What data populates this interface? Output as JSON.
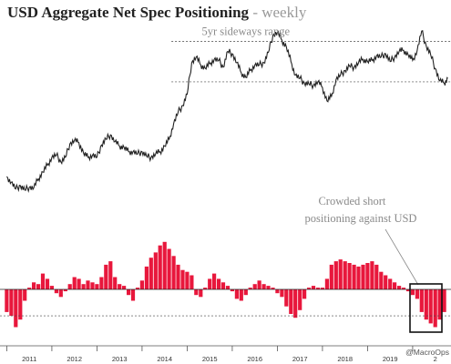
{
  "title": "USD Aggregate Net Spec Positioning",
  "subtitle": "- weekly",
  "source_credit": "@MacroOps",
  "chart_data": [
    {
      "type": "line",
      "series": [
        {
          "values": [
            [
              2011.0,
              76.2
            ],
            [
              2011.1,
              75.2
            ],
            [
              2011.2,
              74.0
            ],
            [
              2011.3,
              74.6
            ],
            [
              2011.4,
              73.8
            ],
            [
              2011.5,
              74.3
            ],
            [
              2011.6,
              74.2
            ],
            [
              2011.7,
              75.8
            ],
            [
              2011.8,
              77.0
            ],
            [
              2011.9,
              78.2
            ],
            [
              2012.0,
              79.6
            ],
            [
              2012.1,
              80.0
            ],
            [
              2012.2,
              78.8
            ],
            [
              2012.3,
              79.6
            ],
            [
              2012.4,
              82.0
            ],
            [
              2012.5,
              82.6
            ],
            [
              2012.6,
              82.2
            ],
            [
              2012.7,
              80.4
            ],
            [
              2012.8,
              79.6
            ],
            [
              2012.9,
              80.0
            ],
            [
              2013.0,
              79.6
            ],
            [
              2013.1,
              81.8
            ],
            [
              2013.2,
              82.8
            ],
            [
              2013.3,
              83.6
            ],
            [
              2013.4,
              82.4
            ],
            [
              2013.5,
              81.6
            ],
            [
              2013.6,
              81.4
            ],
            [
              2013.7,
              80.6
            ],
            [
              2013.8,
              80.6
            ],
            [
              2013.9,
              80.2
            ],
            [
              2014.0,
              80.6
            ],
            [
              2014.1,
              79.8
            ],
            [
              2014.2,
              79.6
            ],
            [
              2014.3,
              80.2
            ],
            [
              2014.4,
              80.6
            ],
            [
              2014.5,
              81.6
            ],
            [
              2014.6,
              82.8
            ],
            [
              2014.7,
              85.6
            ],
            [
              2014.8,
              87.6
            ],
            [
              2014.9,
              88.8
            ],
            [
              2015.0,
              90.8
            ],
            [
              2015.1,
              96.4
            ],
            [
              2015.2,
              97.4
            ],
            [
              2015.3,
              96.0
            ],
            [
              2015.4,
              95.4
            ],
            [
              2015.5,
              96.2
            ],
            [
              2015.6,
              97.0
            ],
            [
              2015.7,
              96.8
            ],
            [
              2015.8,
              95.6
            ],
            [
              2015.9,
              98.4
            ],
            [
              2016.0,
              98.0
            ],
            [
              2016.1,
              96.4
            ],
            [
              2016.2,
              94.6
            ],
            [
              2016.3,
              93.8
            ],
            [
              2016.4,
              95.0
            ],
            [
              2016.5,
              96.0
            ],
            [
              2016.6,
              96.0
            ],
            [
              2016.7,
              96.4
            ],
            [
              2016.8,
              98.2
            ],
            [
              2016.9,
              101.2
            ],
            [
              2017.0,
              101.8
            ],
            [
              2017.1,
              100.4
            ],
            [
              2017.2,
              99.2
            ],
            [
              2017.3,
              96.6
            ],
            [
              2017.4,
              94.2
            ],
            [
              2017.5,
              93.6
            ],
            [
              2017.6,
              92.8
            ],
            [
              2017.7,
              92.6
            ],
            [
              2017.8,
              92.4
            ],
            [
              2017.9,
              93.0
            ],
            [
              2018.0,
              92.0
            ],
            [
              2018.1,
              89.6
            ],
            [
              2018.2,
              90.4
            ],
            [
              2018.3,
              93.4
            ],
            [
              2018.4,
              94.2
            ],
            [
              2018.5,
              95.0
            ],
            [
              2018.6,
              95.8
            ],
            [
              2018.7,
              95.6
            ],
            [
              2018.8,
              96.4
            ],
            [
              2018.9,
              97.0
            ],
            [
              2019.0,
              96.6
            ],
            [
              2019.1,
              96.8
            ],
            [
              2019.2,
              97.6
            ],
            [
              2019.3,
              97.4
            ],
            [
              2019.4,
              98.0
            ],
            [
              2019.5,
              96.6
            ],
            [
              2019.6,
              97.4
            ],
            [
              2019.7,
              98.4
            ],
            [
              2019.8,
              98.6
            ],
            [
              2019.9,
              97.8
            ],
            [
              2020.0,
              96.8
            ],
            [
              2020.1,
              98.6
            ],
            [
              2020.2,
              102.0
            ],
            [
              2020.3,
              99.4
            ],
            [
              2020.4,
              97.8
            ],
            [
              2020.5,
              95.4
            ],
            [
              2020.6,
              93.2
            ],
            [
              2020.7,
              92.8
            ],
            [
              2020.78,
              93.6
            ]
          ]
        }
      ],
      "xlim": [
        2010.85,
        2020.85
      ],
      "ylim": [
        72,
        103
      ],
      "reference_lines": [
        {
          "y": 100.2,
          "style": "dashed",
          "x_from": 2014.65
        },
        {
          "y": 93.0,
          "style": "dashed",
          "x_from": 2014.65
        }
      ],
      "annotations": [
        {
          "text": "5yr sideways range",
          "x": 2016.3,
          "y": 100.2
        }
      ],
      "grid": false,
      "legend": "none"
    },
    {
      "type": "bar",
      "color": "#e8173c",
      "x": [
        2011.0,
        2011.1,
        2011.2,
        2011.3,
        2011.4,
        2011.5,
        2011.6,
        2011.7,
        2011.8,
        2011.9,
        2012.0,
        2012.1,
        2012.2,
        2012.3,
        2012.4,
        2012.5,
        2012.6,
        2012.7,
        2012.8,
        2012.9,
        2013.0,
        2013.1,
        2013.2,
        2013.3,
        2013.4,
        2013.5,
        2013.6,
        2013.7,
        2013.8,
        2013.9,
        2014.0,
        2014.1,
        2014.2,
        2014.3,
        2014.4,
        2014.5,
        2014.6,
        2014.7,
        2014.8,
        2014.9,
        2015.0,
        2015.1,
        2015.2,
        2015.3,
        2015.4,
        2015.5,
        2015.6,
        2015.7,
        2015.8,
        2015.9,
        2016.0,
        2016.1,
        2016.2,
        2016.3,
        2016.4,
        2016.5,
        2016.6,
        2016.7,
        2016.8,
        2016.9,
        2017.0,
        2017.1,
        2017.2,
        2017.3,
        2017.4,
        2017.5,
        2017.6,
        2017.7,
        2017.8,
        2017.9,
        2018.0,
        2018.1,
        2018.2,
        2018.3,
        2018.4,
        2018.5,
        2018.6,
        2018.7,
        2018.8,
        2018.9,
        2019.0,
        2019.1,
        2019.2,
        2019.3,
        2019.4,
        2019.5,
        2019.6,
        2019.7,
        2019.8,
        2019.9,
        2020.0,
        2020.1,
        2020.2,
        2020.3,
        2020.4,
        2020.5,
        2020.6,
        2020.7
      ],
      "values": [
        -12,
        -14,
        -20,
        -16,
        -6,
        1,
        4,
        3,
        9,
        6,
        2,
        -2,
        -4,
        -1,
        3,
        7,
        6,
        3,
        5,
        4,
        3,
        7,
        14,
        16,
        7,
        3,
        2,
        -3,
        -6,
        1,
        5,
        13,
        18,
        21,
        25,
        27,
        23,
        19,
        14,
        11,
        10,
        8,
        -3,
        -4,
        1,
        6,
        9,
        6,
        4,
        2,
        -1,
        -5,
        -6,
        -3,
        1,
        3,
        5,
        3,
        2,
        1,
        -2,
        -4,
        -9,
        -13,
        -15,
        -11,
        -5,
        1,
        2,
        1,
        1,
        6,
        14,
        16,
        17,
        16,
        15,
        14,
        13,
        14,
        15,
        16,
        14,
        10,
        8,
        6,
        4,
        2,
        1,
        -1,
        -3,
        -5,
        -12,
        -16,
        -18,
        -20,
        -16,
        -12
      ],
      "ylim": [
        -26,
        30
      ],
      "reference_lines": [
        {
          "y": 0
        },
        {
          "y": -14,
          "style": "dashed"
        }
      ],
      "annotations": [
        {
          "text": "Crowded short positioning against USD",
          "x": 2019.5,
          "y": 27
        }
      ],
      "xtick_labels": [
        "2011",
        "2012",
        "2013",
        "2014",
        "2015",
        "2016",
        "2017",
        "2018",
        "2019",
        "2"
      ],
      "grid": false,
      "legend": "none"
    }
  ]
}
